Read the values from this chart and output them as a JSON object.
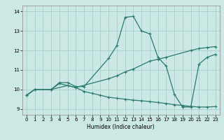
{
  "xlabel": "Humidex (Indice chaleur)",
  "bg_color": "#cce8e5",
  "grid_color": "#a8d0cc",
  "line_color": "#2a7a6e",
  "xlim": [
    -0.5,
    23.5
  ],
  "ylim": [
    8.7,
    14.3
  ],
  "xticks": [
    0,
    1,
    2,
    3,
    4,
    5,
    6,
    7,
    8,
    9,
    10,
    11,
    12,
    13,
    14,
    15,
    16,
    17,
    18,
    19,
    20,
    21,
    22,
    23
  ],
  "yticks": [
    9,
    10,
    11,
    12,
    13,
    14
  ],
  "line_peaked_x": [
    0,
    1,
    3,
    4,
    5,
    6,
    7,
    10,
    11,
    12,
    13,
    14,
    15,
    16,
    17,
    18,
    19,
    20,
    21,
    22,
    23
  ],
  "line_peaked_y": [
    9.7,
    10.0,
    10.0,
    10.35,
    10.35,
    10.15,
    10.15,
    11.6,
    12.25,
    13.7,
    13.75,
    13.0,
    12.85,
    11.65,
    11.2,
    9.75,
    9.1,
    9.1,
    11.3,
    11.65,
    11.8
  ],
  "line_rising_x": [
    0,
    1,
    3,
    5,
    6,
    10,
    11,
    12,
    13,
    15,
    16,
    17,
    20,
    21,
    22,
    23
  ],
  "line_rising_y": [
    9.7,
    10.0,
    10.0,
    10.2,
    10.1,
    10.55,
    10.7,
    10.9,
    11.05,
    11.45,
    11.55,
    11.65,
    12.0,
    12.1,
    12.15,
    12.2
  ],
  "line_falling_x": [
    0,
    1,
    3,
    4,
    5,
    6,
    7,
    8,
    9,
    10,
    11,
    12,
    13,
    14,
    15,
    16,
    17,
    18,
    19,
    20,
    21,
    22,
    23
  ],
  "line_falling_y": [
    9.7,
    10.0,
    10.0,
    10.3,
    10.2,
    10.1,
    9.9,
    9.8,
    9.7,
    9.6,
    9.55,
    9.5,
    9.45,
    9.42,
    9.38,
    9.33,
    9.28,
    9.22,
    9.18,
    9.13,
    9.1,
    9.1,
    9.12
  ]
}
